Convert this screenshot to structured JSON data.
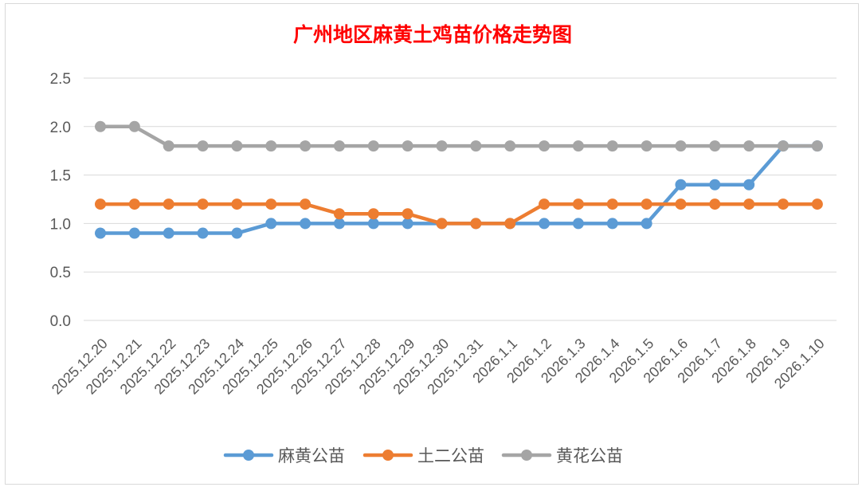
{
  "chart_data": {
    "type": "line",
    "title": "广州地区麻黄土鸡苗价格走势图",
    "xlabel": "",
    "ylabel": "",
    "ylim": [
      0,
      2.5
    ],
    "yticks": [
      "0.0",
      "0.5",
      "1.0",
      "1.5",
      "2.0",
      "2.5"
    ],
    "grid": true,
    "legend_position": "bottom",
    "categories": [
      "2025.12.20",
      "2025.12.21",
      "2025.12.22",
      "2025.12.23",
      "2025.12.24",
      "2025.12.25",
      "2025.12.26",
      "2025.12.27",
      "2025.12.28",
      "2025.12.29",
      "2025.12.30",
      "2025.12.31",
      "2026.1.1",
      "2026.1.2",
      "2026.1.3",
      "2026.1.4",
      "2026.1.5",
      "2026.1.6",
      "2026.1.7",
      "2026.1.8",
      "2026.1.9",
      "2026.1.10"
    ],
    "series": [
      {
        "name": "麻黄公苗",
        "color": "#5b9bd5",
        "values": [
          0.9,
          0.9,
          0.9,
          0.9,
          0.9,
          1.0,
          1.0,
          1.0,
          1.0,
          1.0,
          1.0,
          1.0,
          1.0,
          1.0,
          1.0,
          1.0,
          1.0,
          1.4,
          1.4,
          1.4,
          1.8,
          1.8
        ]
      },
      {
        "name": "土二公苗",
        "color": "#ed7d31",
        "values": [
          1.2,
          1.2,
          1.2,
          1.2,
          1.2,
          1.2,
          1.2,
          1.1,
          1.1,
          1.1,
          1.0,
          1.0,
          1.0,
          1.2,
          1.2,
          1.2,
          1.2,
          1.2,
          1.2,
          1.2,
          1.2,
          1.2
        ]
      },
      {
        "name": "黄花公苗",
        "color": "#a5a5a5",
        "values": [
          2.0,
          2.0,
          1.8,
          1.8,
          1.8,
          1.8,
          1.8,
          1.8,
          1.8,
          1.8,
          1.8,
          1.8,
          1.8,
          1.8,
          1.8,
          1.8,
          1.8,
          1.8,
          1.8,
          1.8,
          1.8,
          1.8
        ]
      }
    ]
  }
}
